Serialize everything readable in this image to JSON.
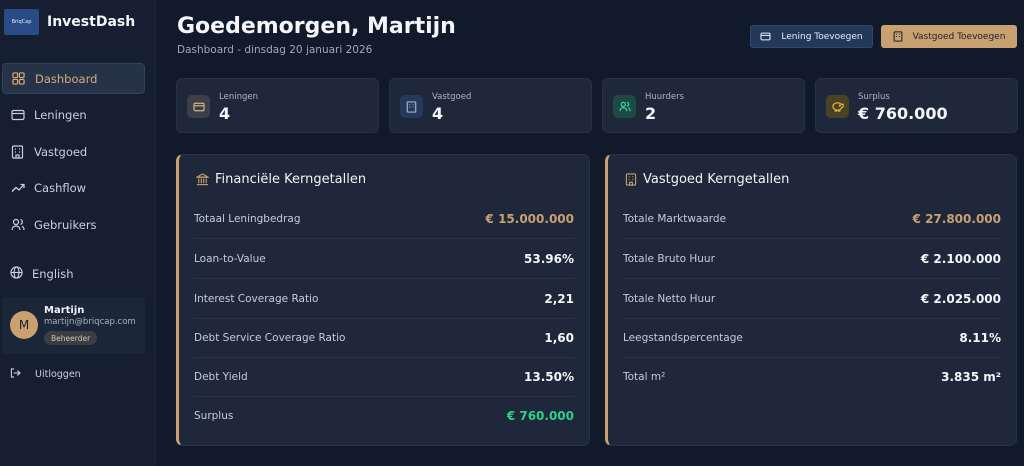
{
  "brand": {
    "logo_text": "BriqCap",
    "name": "InvestDash"
  },
  "sidebar": {
    "items": [
      {
        "label": "Dashboard",
        "icon": "dashboard-icon",
        "active": true
      },
      {
        "label": "Leningen",
        "icon": "card-icon"
      },
      {
        "label": "Vastgoed",
        "icon": "building-icon"
      },
      {
        "label": "Cashflow",
        "icon": "trend-icon"
      },
      {
        "label": "Gebruikers",
        "icon": "users-icon"
      }
    ],
    "language": "English",
    "user": {
      "initial": "M",
      "name": "Martijn",
      "email": "martijn@briqcap.com",
      "role": "Beheerder"
    },
    "logout": "Uitloggen"
  },
  "header": {
    "title": "Goedemorgen, Martijn",
    "subtitle": "Dashboard - dinsdag 20 januari 2026",
    "add_loan": "Lening Toevoegen",
    "add_property": "Vastgoed Toevoegen"
  },
  "stats": [
    {
      "label": "Leningen",
      "value": "4",
      "icon": "card-icon"
    },
    {
      "label": "Vastgoed",
      "value": "4",
      "icon": "building-icon"
    },
    {
      "label": "Huurders",
      "value": "2",
      "icon": "users-icon"
    },
    {
      "label": "Surplus",
      "value": "€ 760.000",
      "icon": "piggy-bank-icon"
    }
  ],
  "financial": {
    "title": "Financiële Kerngetallen",
    "rows": [
      {
        "label": "Totaal Leningbedrag",
        "value": "€ 15.000.000"
      },
      {
        "label": "Loan-to-Value",
        "value": "53.96%"
      },
      {
        "label": "Interest Coverage Ratio",
        "value": "2,21"
      },
      {
        "label": "Debt Service Coverage Ratio",
        "value": "1,60"
      },
      {
        "label": "Debt Yield",
        "value": "13.50%"
      },
      {
        "label": "Surplus",
        "value": "€ 760.000"
      }
    ]
  },
  "property": {
    "title": "Vastgoed Kerngetallen",
    "rows": [
      {
        "label": "Totale Marktwaarde",
        "value": "€ 27.800.000"
      },
      {
        "label": "Totale Bruto Huur",
        "value": "€ 2.100.000"
      },
      {
        "label": "Totale Netto Huur",
        "value": "€ 2.025.000"
      },
      {
        "label": "Leegstandspercentage",
        "value": "8.11%"
      },
      {
        "label": "Total m²",
        "value": "3.835 m²"
      }
    ]
  },
  "colors": {
    "accent": "#c9a06f",
    "positive": "#2bd08f",
    "background": "#111a2b",
    "card": "#1e283a"
  }
}
